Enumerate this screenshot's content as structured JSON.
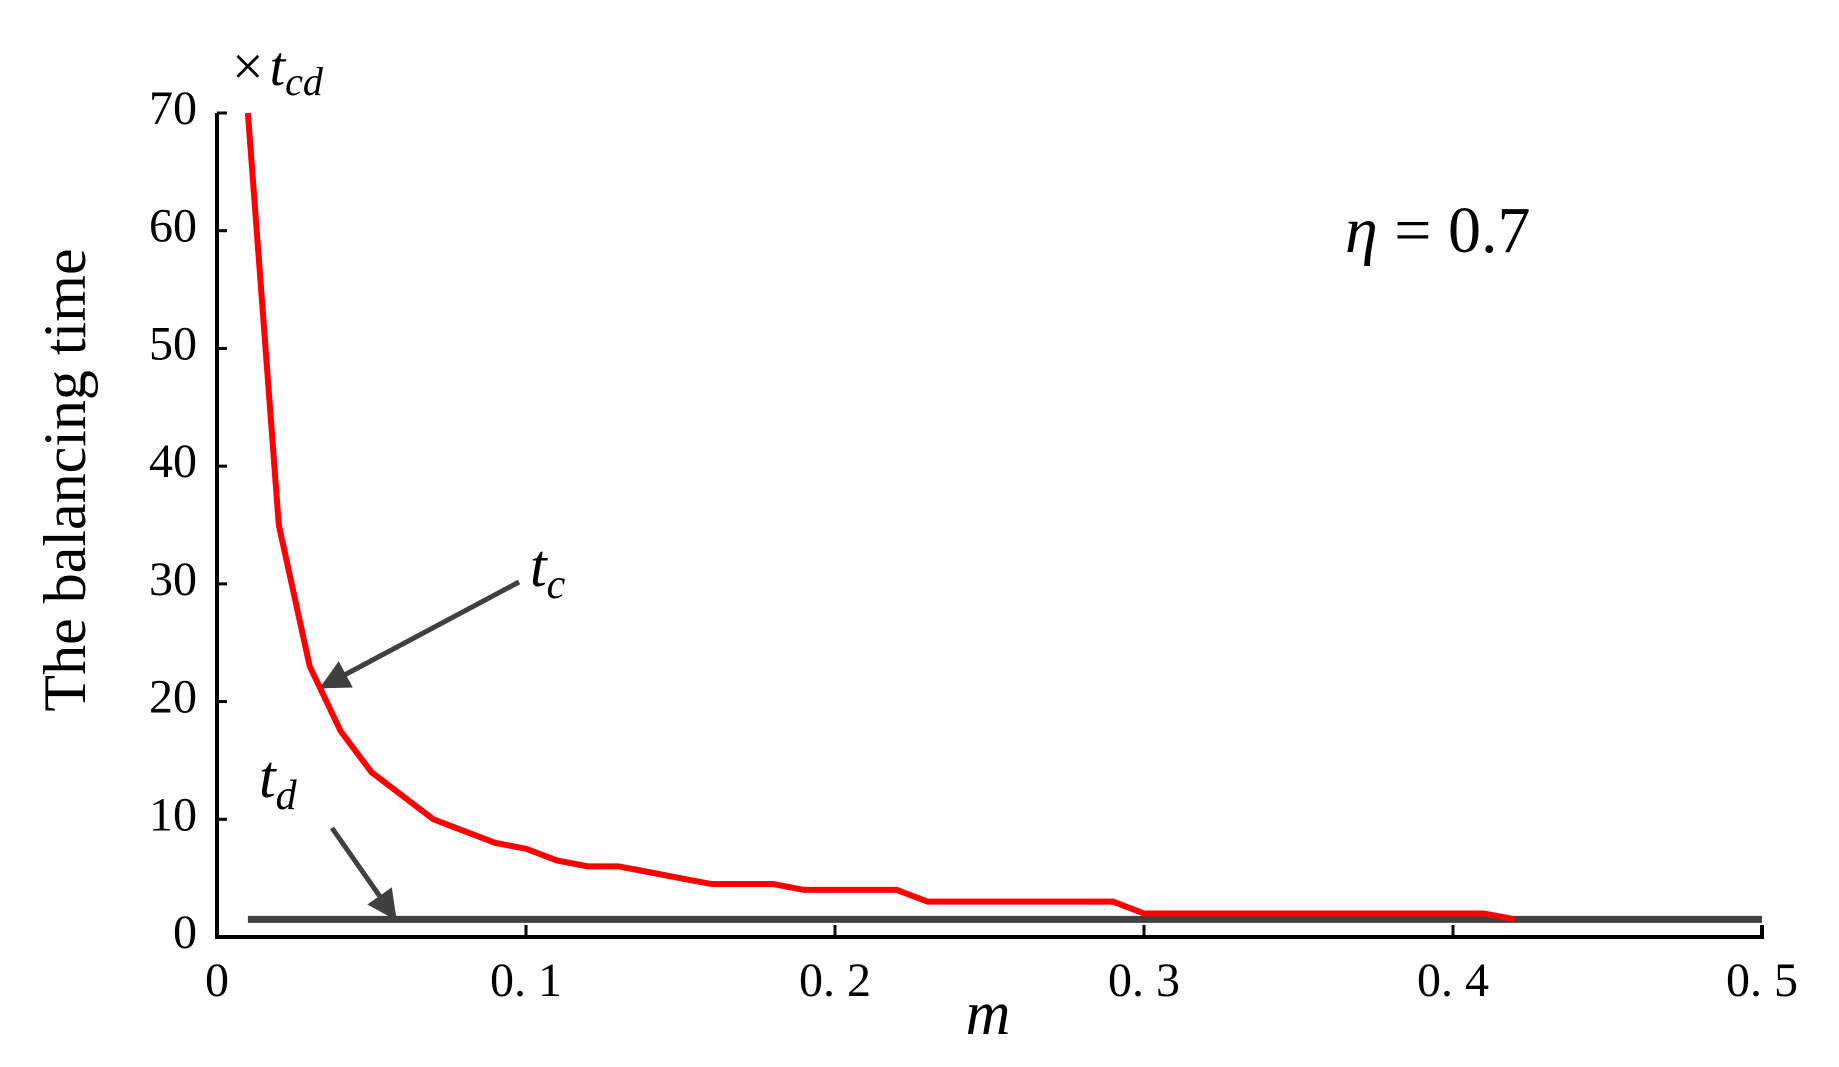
{
  "chart_data": {
    "type": "line",
    "y_label": "The balancing time",
    "x_label": "m",
    "unit_label": {
      "prefix": "×",
      "main": "t",
      "sub": "cd"
    },
    "annotations": [
      {
        "main": "η",
        "rest": " = 0.7"
      },
      {
        "main": "t",
        "sub": "c"
      },
      {
        "main": "t",
        "sub": "d"
      }
    ],
    "xlim": [
      0,
      0.5
    ],
    "ylim": [
      0,
      70
    ],
    "xticks": [
      0,
      {
        "value": 0.1,
        "label": "0. 1"
      },
      {
        "value": 0.2,
        "label": "0. 2"
      },
      {
        "value": 0.3,
        "label": "0. 3"
      },
      {
        "value": 0.4,
        "label": "0. 4"
      },
      {
        "value": 0.5,
        "label": "0. 5"
      }
    ],
    "yticks": [
      0,
      10,
      20,
      30,
      40,
      50,
      60,
      70
    ],
    "series": [
      {
        "color": "#ff0000",
        "x": [
          0.01,
          0.02,
          0.03,
          0.04,
          0.05,
          0.06,
          0.07,
          0.08,
          0.09,
          0.1,
          0.11,
          0.12,
          0.13,
          0.14,
          0.15,
          0.16,
          0.17,
          0.18,
          0.19,
          0.2,
          0.21,
          0.22,
          0.23,
          0.24,
          0.25,
          0.26,
          0.27,
          0.28,
          0.29,
          0.3,
          0.31,
          0.32,
          0.33,
          0.34,
          0.35,
          0.36,
          0.37,
          0.38,
          0.39,
          0.4,
          0.41,
          0.42
        ],
        "values": [
          70,
          35,
          23,
          17.5,
          14,
          12,
          10,
          9,
          8,
          7.5,
          6.5,
          6,
          6,
          5.5,
          5,
          4.5,
          4.5,
          4.5,
          4,
          4,
          4,
          4,
          3,
          3,
          3,
          3,
          3,
          3,
          3,
          2,
          2,
          2,
          2,
          2,
          2,
          2,
          2,
          2,
          2,
          2,
          2,
          1.5
        ]
      },
      {
        "color": "#404040",
        "x": [
          0.01,
          0.5
        ],
        "values": [
          1.5,
          1.5
        ]
      }
    ]
  }
}
